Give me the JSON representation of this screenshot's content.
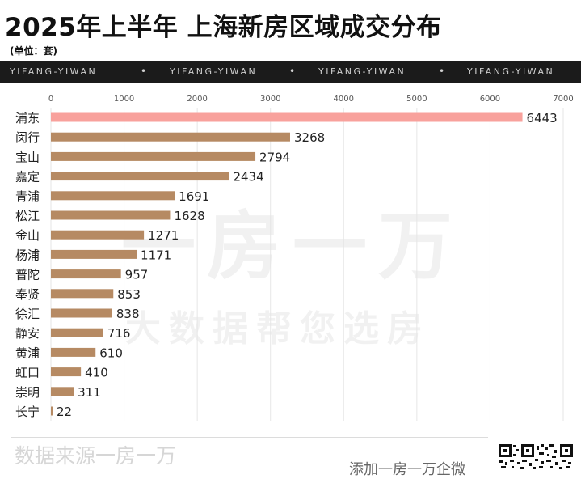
{
  "title": "2025年上半年 上海新房区域成交分布",
  "unit_label": "(单位：套)",
  "banner": {
    "items": [
      "YIFANG-YIWAN",
      "•",
      "YIFANG-YIWAN",
      "•",
      "YIFANG-YIWAN",
      "•",
      "YIFANG-YIWAN"
    ]
  },
  "watermark": {
    "line1": "一房一万",
    "line2": "大数据帮您选房"
  },
  "footer": {
    "source": "数据来源一房一万",
    "follow": "添加一房一万企微"
  },
  "colors": {
    "highlight_bar": "#f8a19c",
    "bar": "#b68a63",
    "banner_bg": "#1b1b1b",
    "grid": "#e6e6e6"
  },
  "chart_data": {
    "type": "bar",
    "orientation": "horizontal",
    "categories": [
      "浦东",
      "闵行",
      "宝山",
      "嘉定",
      "青浦",
      "松江",
      "金山",
      "杨浦",
      "普陀",
      "奉贤",
      "徐汇",
      "静安",
      "黄浦",
      "虹口",
      "崇明",
      "长宁"
    ],
    "values": [
      6443,
      3268,
      2794,
      2434,
      1691,
      1628,
      1271,
      1171,
      957,
      853,
      838,
      716,
      610,
      410,
      311,
      22
    ],
    "highlight_index": 0,
    "xlim": [
      0,
      7000
    ],
    "x_ticks": [
      0,
      1000,
      2000,
      3000,
      4000,
      5000,
      6000,
      7000
    ],
    "x_tick_labels": [
      "0",
      "1000",
      "2000",
      "3000",
      "4000",
      "5000",
      "6000",
      "7000"
    ],
    "grid": true,
    "x_axis_position": "top",
    "data_labels": true
  }
}
